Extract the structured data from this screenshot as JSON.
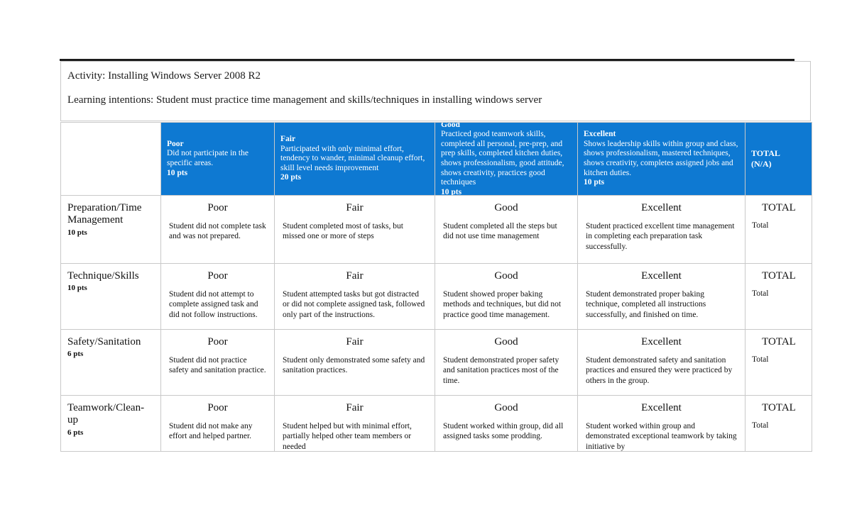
{
  "document": {
    "activity_line": "Activity: Installing Windows Server 2008 R2",
    "learning_intentions_line": "Learning intentions: Student must practice time management and skills/techniques in installing windows server"
  },
  "rubric": {
    "header": {
      "levels": [
        {
          "title": "Poor",
          "description": "Did not participate in the specific areas.",
          "points": "10 pts"
        },
        {
          "title": "Fair",
          "description": "Participated with only minimal effort, tendency to wander, minimal cleanup effort, skill level needs improvement",
          "points": "20 pts"
        },
        {
          "title": "Good",
          "description": "Practiced good teamwork skills, completed all personal, pre-prep, and prep skills, completed kitchen duties, shows professionalism, good attitude, shows creativity, practices good techniques",
          "points": "10 pts"
        },
        {
          "title": "Excellent",
          "description": "Shows leadership skills within group and class, shows professionalism, mastered techniques, shows creativity, completes assigned jobs and kitchen duties.",
          "points": "10 pts"
        }
      ],
      "total_line1": "TOTAL",
      "total_line2": "(N/A)"
    },
    "rows": [
      {
        "criterion": "Preparation/Time Management",
        "points": "10 pts",
        "cells": [
          {
            "title": "Poor",
            "description": "Student did not complete task and was not prepared."
          },
          {
            "title": "Fair",
            "description": "Student completed most of tasks, but missed one or more of steps"
          },
          {
            "title": "Good",
            "description": "Student completed all the steps but did not use time management"
          },
          {
            "title": "Excellent",
            "description": "Student practiced excellent time management in completing each preparation task successfully."
          }
        ],
        "total_title": "TOTAL",
        "total_value": "Total"
      },
      {
        "criterion": "Technique/Skills",
        "points": "10 pts",
        "cells": [
          {
            "title": "Poor",
            "description": "Student did not attempt to complete assigned task and did not follow instructions."
          },
          {
            "title": "Fair",
            "description": "Student attempted tasks but got distracted or did not complete assigned task, followed only part of the instructions."
          },
          {
            "title": "Good",
            "description": "Student showed proper baking methods and techniques, but did not practice good time management."
          },
          {
            "title": "Excellent",
            "description": "Student demonstrated proper baking technique, completed all instructions successfully, and finished on time."
          }
        ],
        "total_title": "TOTAL",
        "total_value": "Total"
      },
      {
        "criterion": "Safety/Sanitation",
        "points": "6 pts",
        "cells": [
          {
            "title": "Poor",
            "description": "Student did not practice safety and sanitation practice."
          },
          {
            "title": "Fair",
            "description": "Student only demonstrated some safety and sanitation practices."
          },
          {
            "title": "Good",
            "description": "Student demonstrated proper safety and sanitation practices most of the time."
          },
          {
            "title": "Excellent",
            "description": "Student demonstrated safety and sanitation practices and ensured they were practiced by others in the group."
          }
        ],
        "total_title": "TOTAL",
        "total_value": "Total"
      },
      {
        "criterion": "Teamwork/Clean-up",
        "points": "6 pts",
        "cells": [
          {
            "title": "Poor",
            "description": "Student did not make any effort and helped partner."
          },
          {
            "title": "Fair",
            "description": "Student helped but with minimal effort, partially helped other team members or needed"
          },
          {
            "title": "Good",
            "description": "Student worked within group, did all assigned tasks some prodding."
          },
          {
            "title": "Excellent",
            "description": "Student worked within group and demonstrated exceptional teamwork by taking initiative by"
          }
        ],
        "total_title": "TOTAL",
        "total_value": "Total"
      }
    ]
  },
  "colors": {
    "header_blue": "#0e79d2",
    "border": "#c9c9c9",
    "rule": "#1c1c1c"
  }
}
